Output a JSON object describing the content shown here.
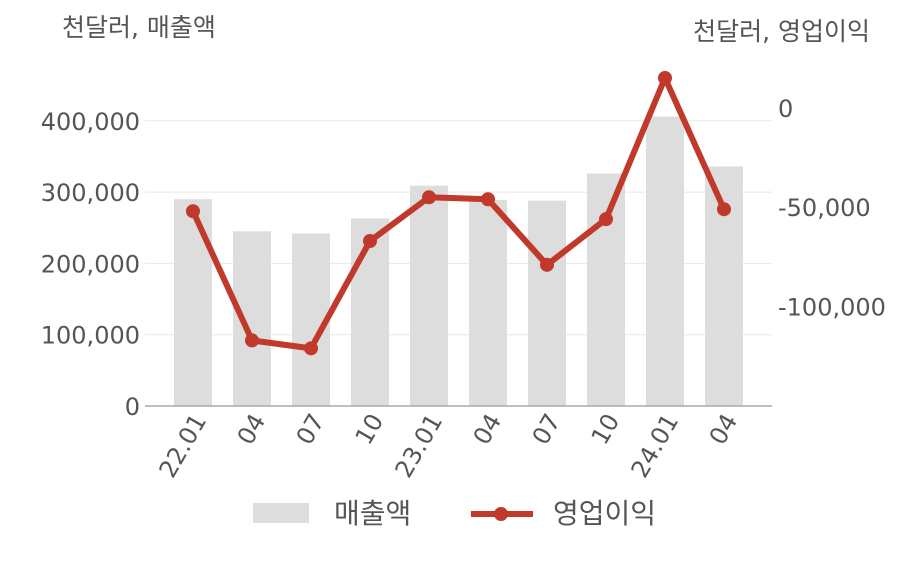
{
  "chart_data": {
    "type": "bar+line",
    "categories": [
      "22.01",
      "04",
      "07",
      "10",
      "23.01",
      "04",
      "07",
      "10",
      "24.01",
      "04"
    ],
    "left_axis": {
      "label": "천달러, 매출액",
      "ticks": [
        "0",
        "100,000",
        "200,000",
        "300,000",
        "400,000"
      ],
      "range": [
        0,
        460000
      ]
    },
    "right_axis": {
      "label": "천달러, 영업이익",
      "ticks": [
        "-100,000",
        "-50,000",
        "0"
      ],
      "range": [
        -150000,
        15000
      ]
    },
    "series": [
      {
        "name": "매출액",
        "type": "bar",
        "axis": "left",
        "color": "#dddddd",
        "values": [
          290000,
          245000,
          242000,
          263000,
          309000,
          289000,
          288000,
          326000,
          406000,
          336000
        ]
      },
      {
        "name": "영업이익",
        "type": "line",
        "axis": "right",
        "color": "#c0392b",
        "values": [
          -52000,
          -117000,
          -121000,
          -67000,
          -45000,
          -46000,
          -79000,
          -56000,
          15000,
          -51000
        ]
      }
    ],
    "grid": true,
    "legend": "bottom"
  }
}
